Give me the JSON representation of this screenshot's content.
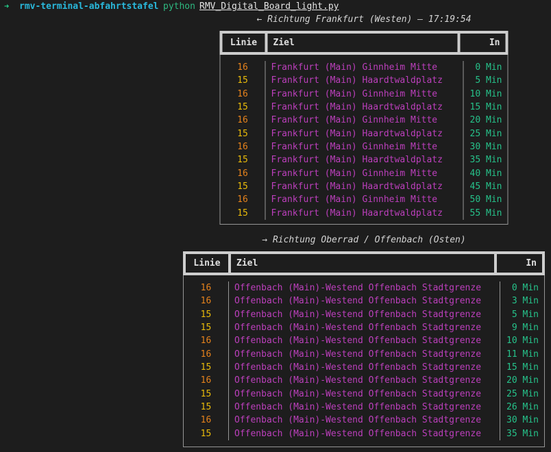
{
  "terminal": {
    "prompt_symbol": "➜",
    "directory": "rmv-terminal-abfahrtstafel",
    "command": "python",
    "script": "RMV_Digital_Board_light.py"
  },
  "board": {
    "west": {
      "heading": "← Richtung Frankfurt (Westen) – 17:19:54",
      "time": "17:19:54",
      "columns": [
        "Linie",
        "Ziel",
        "In"
      ],
      "rows": [
        [
          "16",
          "Frankfurt (Main) Ginnheim Mitte",
          "0 Min"
        ],
        [
          "15",
          "Frankfurt (Main) Haardtwaldplatz",
          "5 Min"
        ],
        [
          "16",
          "Frankfurt (Main) Ginnheim Mitte",
          "10 Min"
        ],
        [
          "15",
          "Frankfurt (Main) Haardtwaldplatz",
          "15 Min"
        ],
        [
          "16",
          "Frankfurt (Main) Ginnheim Mitte",
          "20 Min"
        ],
        [
          "15",
          "Frankfurt (Main) Haardtwaldplatz",
          "25 Min"
        ],
        [
          "16",
          "Frankfurt (Main) Ginnheim Mitte",
          "30 Min"
        ],
        [
          "15",
          "Frankfurt (Main) Haardtwaldplatz",
          "35 Min"
        ],
        [
          "16",
          "Frankfurt (Main) Ginnheim Mitte",
          "40 Min"
        ],
        [
          "15",
          "Frankfurt (Main) Haardtwaldplatz",
          "45 Min"
        ],
        [
          "16",
          "Frankfurt (Main) Ginnheim Mitte",
          "50 Min"
        ],
        [
          "15",
          "Frankfurt (Main) Haardtwaldplatz",
          "55 Min"
        ]
      ]
    },
    "east": {
      "heading": "→ Richtung Oberrad / Offenbach (Osten)",
      "columns": [
        "Linie",
        "Ziel",
        "In"
      ],
      "rows": [
        [
          "16",
          "Offenbach (Main)-Westend Offenbach Stadtgrenze",
          "0 Min"
        ],
        [
          "16",
          "Offenbach (Main)-Westend Offenbach Stadtgrenze",
          "3 Min"
        ],
        [
          "15",
          "Offenbach (Main)-Westend Offenbach Stadtgrenze",
          "5 Min"
        ],
        [
          "15",
          "Offenbach (Main)-Westend Offenbach Stadtgrenze",
          "9 Min"
        ],
        [
          "16",
          "Offenbach (Main)-Westend Offenbach Stadtgrenze",
          "10 Min"
        ],
        [
          "16",
          "Offenbach (Main)-Westend Offenbach Stadtgrenze",
          "11 Min"
        ],
        [
          "15",
          "Offenbach (Main)-Westend Offenbach Stadtgrenze",
          "15 Min"
        ],
        [
          "16",
          "Offenbach (Main)-Westend Offenbach Stadtgrenze",
          "20 Min"
        ],
        [
          "15",
          "Offenbach (Main)-Westend Offenbach Stadtgrenze",
          "25 Min"
        ],
        [
          "15",
          "Offenbach (Main)-Westend Offenbach Stadtgrenze",
          "26 Min"
        ],
        [
          "16",
          "Offenbach (Main)-Westend Offenbach Stadtgrenze",
          "30 Min"
        ],
        [
          "15",
          "Offenbach (Main)-Westend Offenbach Stadtgrenze",
          "35 Min"
        ]
      ]
    }
  },
  "colors": {
    "background": "#1d1d1d",
    "heavy_border": "#cdcdcd",
    "light_border": "#969696",
    "header_text": "#e0e0e0",
    "heading_text": "#d4d4d4",
    "destination": "#bc3fbc",
    "time": "#26c28a",
    "prompt_arrow": "#23d18b",
    "directory": "#29b8db",
    "command": "#2eb980",
    "script_text": "#e4e4e4",
    "line_colors": {
      "16": "#e5821c",
      "15": "#e8ba0a"
    }
  }
}
